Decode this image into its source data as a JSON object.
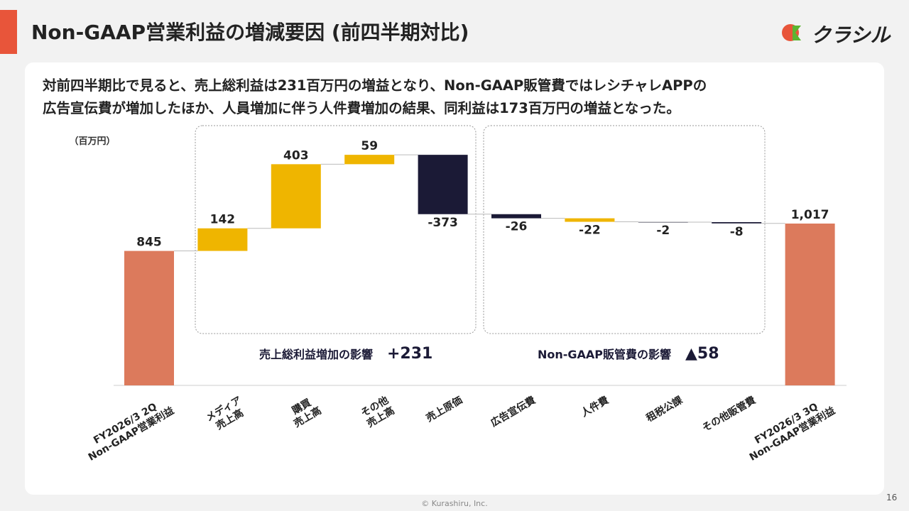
{
  "header": {
    "title": "Non-GAAP営業利益の増減要因 (前四半期対比)",
    "logo": "クラシル"
  },
  "summary": [
    "対前四半期比で見ると、売上総利益は231百万円の増益となり、Non-GAAP販管費ではレシチャレAPPの",
    "広告宣伝費が増加したほか、人員増加に伴う人件費増加の結果、同利益は173百万円の増益となった。"
  ],
  "chart_data": {
    "type": "waterfall",
    "unit": "（百万円）",
    "categories": [
      "FY2026/3 2Q\nNon-GAAP営業利益",
      "メディア\n売上高",
      "購買\n売上高",
      "その他\n売上高",
      "売上原価",
      "広告宣伝費",
      "人件費",
      "租税公課",
      "その他販管費",
      "FY2026/3 3Q\nNon-GAAP営業利益"
    ],
    "values": [
      845,
      142,
      403,
      59,
      -373,
      -26,
      -22,
      -2,
      -8,
      1017
    ],
    "value_labels": [
      "845",
      "142",
      "403",
      "59",
      "-373",
      "-26",
      "-22",
      "-2",
      "-8",
      "1,017"
    ],
    "measure": [
      "absolute",
      "relative",
      "relative",
      "relative",
      "relative",
      "relative",
      "relative",
      "relative",
      "relative",
      "absolute"
    ],
    "colors": [
      "#dc7a5c",
      "#efb500",
      "#efb500",
      "#efb500",
      "#1b1a36",
      "#1b1a36",
      "#efb500",
      "#9a9aa3",
      "#1b1a36",
      "#dc7a5c"
    ],
    "groups": [
      {
        "label": "売上総利益増加の影響",
        "value_label": "+231"
      },
      {
        "label": "Non-GAAP販管費の影響",
        "value_label": "▲58"
      }
    ]
  },
  "footer": {
    "copyright": "© Kurashiru, Inc.",
    "page": "16"
  }
}
